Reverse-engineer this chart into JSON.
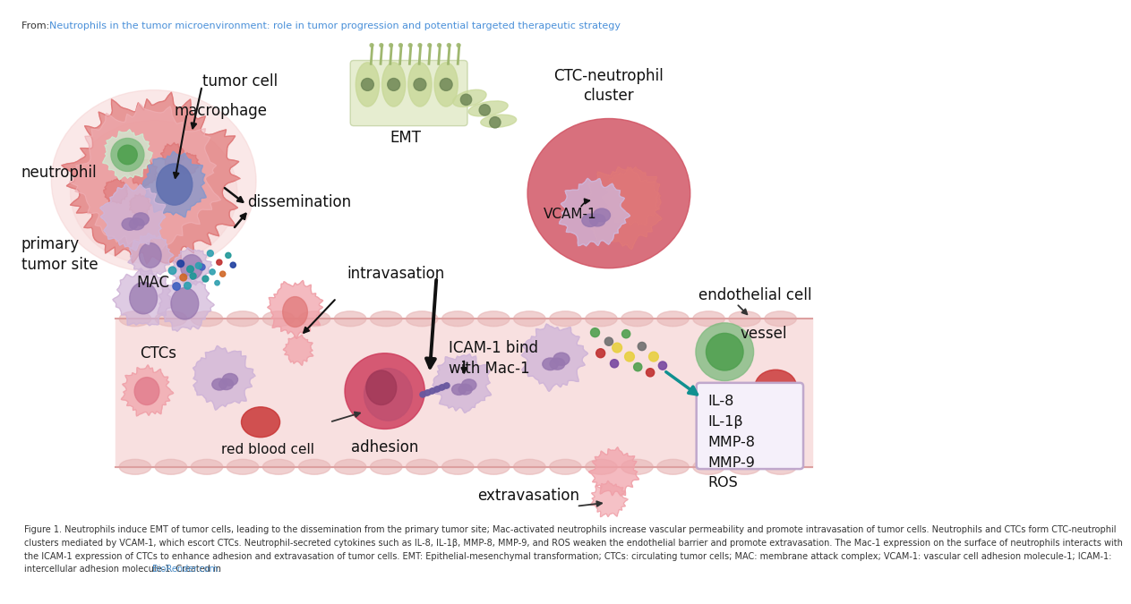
{
  "bg_color": "#ffffff",
  "header_from_color": "#333333",
  "header_title_color": "#4a90d9",
  "header_title": "Neutrophils in the tumor microenvironment: role in tumor progression and potential targeted therapeutic strategy",
  "biorender_color": "#4a8fcc",
  "labels": {
    "tumor_cell": "tumor cell",
    "macrophage": "macrophage",
    "neutrophil": "neutrophil",
    "primary_tumor": "primary\ntumor site",
    "EMT": "EMT",
    "dissemination": "dissemination",
    "MAC": "MAC",
    "intravasation": "intravasation",
    "CTCs": "CTCs",
    "red_blood_cell": "red blood cell",
    "adhesion": "adhesion",
    "ICAM1": "ICAM-1 bind\nwith Mac-1",
    "extravasation": "extravasation",
    "endothelial": "endothelial cell",
    "vessel": "vessel",
    "CTC_cluster": "CTC-neutrophil\ncluster",
    "VCAM1": "VCAM-1",
    "cytokines": "IL-8\nIL-1β\nMMP-8\nMMP-9\nROS"
  },
  "colors": {
    "tumor_pink": "#e07878",
    "tumor_light": "#f0b0b5",
    "tumor_halo": "#f5cece",
    "neutrophil_body": "#d0b5d8",
    "neutrophil_nucleus": "#9878b0",
    "neutrophil_nucleus2": "#b090c8",
    "macrophage_body": "#8898cc",
    "macrophage_blue_dark": "#6070b0",
    "green_cell_body": "#80bb80",
    "green_cell_inner": "#50a050",
    "red_blood": "#c83030",
    "dark_red_circle": "#cc3355",
    "ctc_cluster_bg": "#d05060",
    "ctc_cluster_bg2": "#c84058",
    "dot_yellow": "#e8d040",
    "dot_teal": "#30a0b0",
    "dot_teal2": "#209898",
    "dot_orange": "#d06828",
    "dot_blue": "#4060c0",
    "dot_dark_blue": "#2040a0",
    "dot_red": "#c03030",
    "dot_green": "#50a050",
    "dot_purple": "#7848a0",
    "dot_gray": "#707070",
    "vessel_fill": "#f8e0e0",
    "vessel_wall": "#e8b8b8",
    "vessel_wall2": "#dda0a0",
    "box_border": "#c0a8cc",
    "teal_arrow": "#109090",
    "purple_link": "#6858a0",
    "emt_body": "#c8d898",
    "emt_inner": "#a0b870",
    "emt_nucleus": "#708858",
    "pink_cell": "#f0a0a8",
    "pink_cell_dark": "#e07888"
  },
  "caption_lines": [
    "Figure 1. Neutrophils induce EMT of tumor cells, leading to the dissemination from the primary tumor site; Mac-activated neutrophils increase vascular permeability and promote intravasation of tumor cells. Neutrophils and CTCs form CTC-neutrophil",
    "clusters mediated by VCAM-1, which escort CTCs. Neutrophil-secreted cytokines such as IL-8, IL-1β, MMP-8, MMP-9, and ROS weaken the endothelial barrier and promote extravasation. The Mac-1 expression on the surface of neutrophils interacts with",
    "the ICAM-1 expression of CTCs to enhance adhesion and extravasation of tumor cells. EMT: Epithelial-mesenchymal transformation; CTCs: circulating tumor cells; MAC: membrane attack complex; VCAM-1: vascular cell adhesion molecule-1; ICAM-1:",
    "intercellular adhesion molecule-1. Created in BioRender.com."
  ]
}
